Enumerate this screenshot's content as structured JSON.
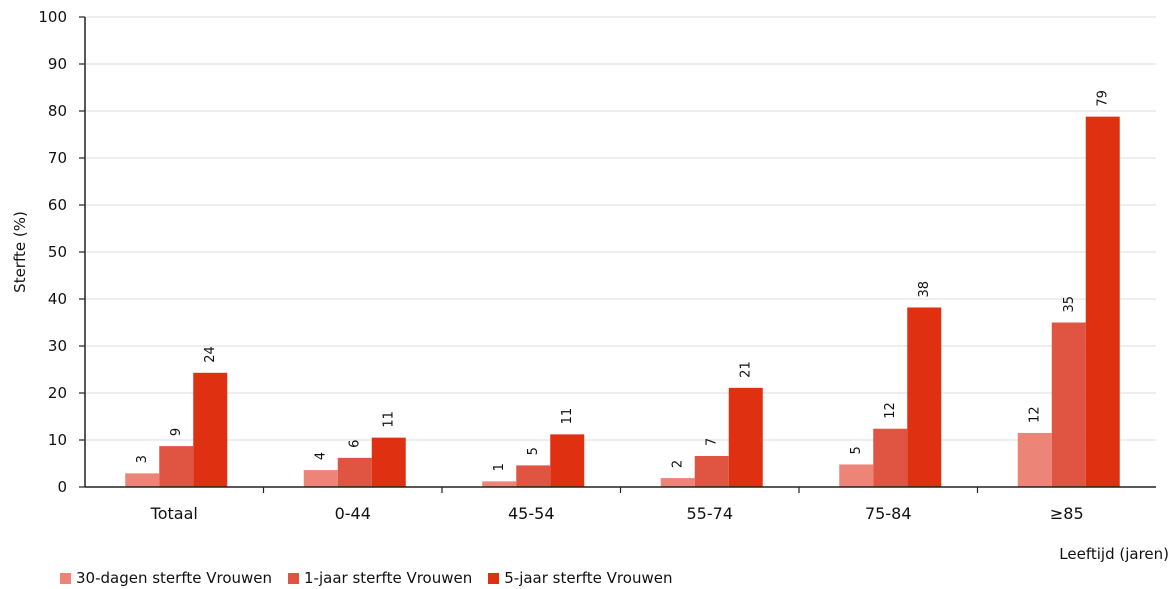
{
  "chart_data": {
    "type": "bar",
    "categories": [
      "Totaal",
      "0-44",
      "45-54",
      "55-74",
      "75-84",
      "≥85"
    ],
    "series": [
      {
        "name": "30-dagen sterfte Vrouwen",
        "color": "#ec8577",
        "values": [
          3,
          4,
          1,
          2,
          5,
          12
        ],
        "plot_values": [
          2.9,
          3.6,
          1.2,
          1.9,
          4.8,
          11.5
        ]
      },
      {
        "name": "1-jaar sterfte Vrouwen",
        "color": "#e05542",
        "values": [
          9,
          6,
          5,
          7,
          12,
          35
        ],
        "plot_values": [
          8.7,
          6.2,
          4.6,
          6.6,
          12.4,
          35.0
        ]
      },
      {
        "name": "5-jaar sterfte Vrouwen",
        "color": "#df3012",
        "values": [
          24,
          11,
          11,
          21,
          38,
          79
        ],
        "plot_values": [
          24.3,
          10.5,
          11.2,
          21.1,
          38.2,
          78.8
        ]
      }
    ],
    "ylabel": "Sterfte (%)",
    "xlabel": "Leeftijd (jaren)",
    "ylim": [
      0,
      100
    ],
    "yticks": [
      0,
      10,
      20,
      30,
      40,
      50,
      60,
      70,
      80,
      90,
      100
    ],
    "grid": true,
    "legend_position": "bottom-left"
  }
}
